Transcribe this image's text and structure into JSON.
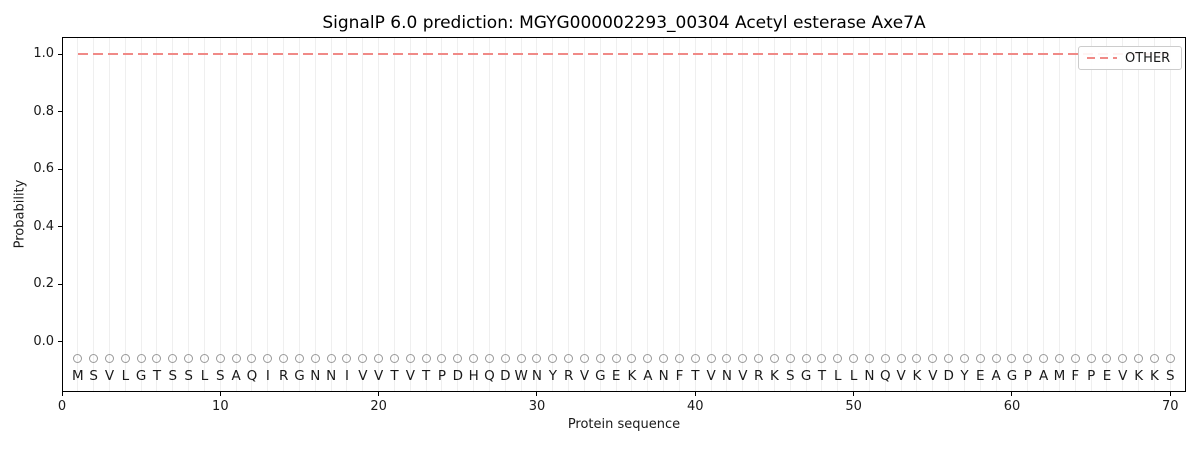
{
  "chart_data": {
    "type": "line",
    "title": "SignalP 6.0 prediction: MGYG000002293_00304 Acetyl esterase Axe7A",
    "xlabel": "Protein sequence",
    "ylabel": "Probability",
    "xlim": [
      0,
      71
    ],
    "ylim": [
      -0.17,
      1.06
    ],
    "xticks": [
      0,
      10,
      20,
      30,
      40,
      50,
      60,
      70
    ],
    "yticks": [
      "0.0",
      "0.2",
      "0.4",
      "0.6",
      "0.8",
      "1.0"
    ],
    "grid": "vertical gridline at every residue position 1-70",
    "legend": {
      "position": "upper right",
      "entries": [
        {
          "label": "OTHER",
          "line_style": "dashed",
          "color": "#f08a87"
        }
      ]
    },
    "series": [
      {
        "name": "OTHER",
        "style": "dashed",
        "color": "#f08a87",
        "x_start": 1,
        "x_end": 70,
        "constant_value": 1.0,
        "description": "flat dashed line at probability ~1.0 across all 70 residues"
      }
    ],
    "sequence": {
      "letters": "MSVLGTSSLSAQIRGNNIVVTVTPDHQDWNYRVGEKANFTVNVRKSGTLLNQVKVDYEAGPAMFPEVKKS",
      "first_position": 1,
      "last_position": 70,
      "marker": "open-circle",
      "marker_y": -0.06,
      "letter_y": -0.12
    },
    "colors": {
      "other_line": "#f08a87",
      "gridline": "#efefef",
      "marker_stroke": "#9a9a9a",
      "text": "#1a1a1a",
      "frame": "#000000",
      "background": "#ffffff"
    }
  }
}
